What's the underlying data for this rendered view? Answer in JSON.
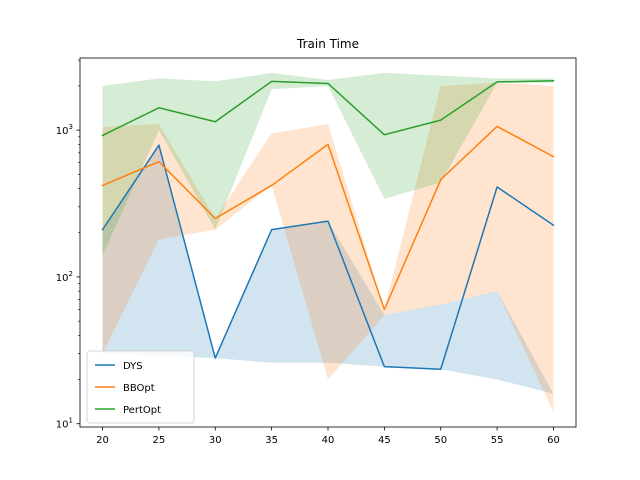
{
  "chart_data": {
    "type": "line",
    "title": "Train Time",
    "xlabel": "",
    "ylabel": "",
    "yscale": "log",
    "ylim": [
      9.5,
      3100
    ],
    "xlim": [
      18,
      62
    ],
    "x": [
      20,
      25,
      30,
      35,
      40,
      45,
      50,
      55,
      60
    ],
    "xticks": [
      20,
      25,
      30,
      35,
      40,
      45,
      50,
      55,
      60
    ],
    "yticks": [
      10,
      100,
      1000
    ],
    "ytick_labels": [
      {
        "base": "10",
        "exp": "1"
      },
      {
        "base": "10",
        "exp": "2"
      },
      {
        "base": "10",
        "exp": "3"
      }
    ],
    "grid": false,
    "legend_position": "lower-left",
    "series": [
      {
        "name": "DYS",
        "color": "#1f77b4",
        "values": [
          210,
          790,
          28,
          210,
          240,
          24.5,
          23.5,
          410,
          225
        ],
        "band_low": [
          30,
          29,
          28,
          26,
          26,
          24.5,
          23.5,
          20,
          16
        ],
        "band_high": [
          210,
          790,
          28,
          210,
          240,
          55,
          65,
          80,
          16
        ]
      },
      {
        "name": "BBOpt",
        "color": "#ff7f0e",
        "values": [
          420,
          610,
          250,
          420,
          800,
          60,
          460,
          1060,
          660
        ],
        "band_low": [
          30,
          180,
          210,
          420,
          20,
          55,
          65,
          80,
          12
        ],
        "band_high": [
          1050,
          1100,
          250,
          950,
          1100,
          60,
          2000,
          2100,
          2000
        ]
      },
      {
        "name": "PertOpt",
        "color": "#2ca02c",
        "values": [
          920,
          1420,
          1140,
          2150,
          2080,
          930,
          1170,
          2130,
          2170
        ],
        "band_low": [
          140,
          1000,
          210,
          1900,
          2000,
          340,
          440,
          2100,
          2100
        ],
        "band_high": [
          2000,
          2250,
          2150,
          2450,
          2200,
          2450,
          2350,
          2250,
          2250
        ]
      }
    ]
  }
}
